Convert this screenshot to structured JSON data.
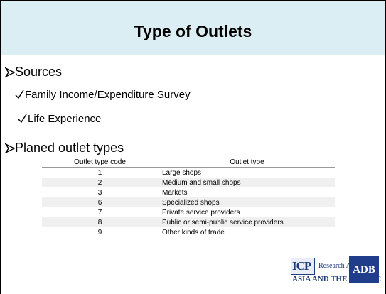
{
  "slide": {
    "title": "Type of Outlets",
    "bullets": [
      {
        "text": "Sources",
        "items": [
          "Family Income/Expenditure Survey",
          "Life Experience"
        ]
      },
      {
        "text": "Planed outlet types"
      }
    ],
    "table": {
      "header": [
        "Outlet type code",
        "Outlet type"
      ],
      "rows": [
        [
          "1",
          "Large shops"
        ],
        [
          "2",
          "Medium and small shops"
        ],
        [
          "3",
          "Markets"
        ],
        [
          "6",
          "Specialized shops"
        ],
        [
          "7",
          "Private service providers"
        ],
        [
          "8",
          "Public or semi-public service providers"
        ],
        [
          "9",
          "Other kinds of trade"
        ]
      ]
    },
    "logos": {
      "icp": "ICP",
      "research": "Research Agenda",
      "region": "ASIA AND THE PACIFIC",
      "adb": "ADB"
    }
  }
}
